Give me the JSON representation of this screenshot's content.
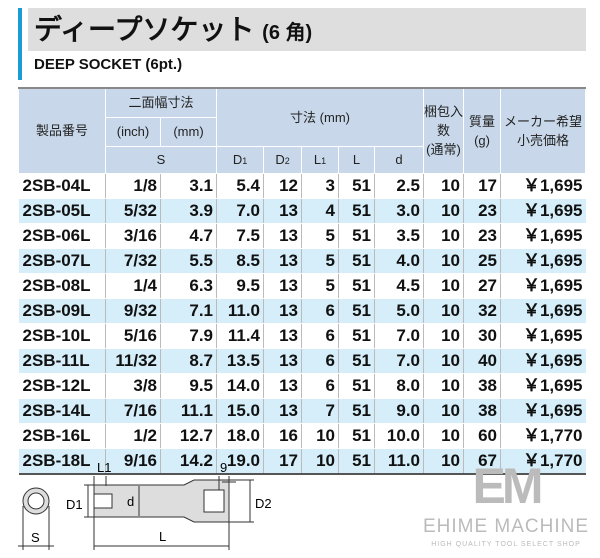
{
  "title": "ディープソケット",
  "title_suffix": "(6 角)",
  "subtitle": "DEEP SOCKET (6pt.)",
  "headers": {
    "part_no": "製品番号",
    "width_across": "二面幅寸法",
    "inch": "(inch)",
    "mm": "(mm)",
    "s": "S",
    "dims": "寸法 (mm)",
    "d1": "D",
    "d2": "D",
    "l1": "L",
    "l": "L",
    "d": "d",
    "sub1": "1",
    "sub2": "2",
    "pack": "梱包入数",
    "pack2": "(通常)",
    "weight": "質量",
    "weight_unit": "(g)",
    "price": "メーカー希望",
    "price2": "小売価格"
  },
  "rows": [
    [
      "2SB-04L",
      "1/8",
      "3.1",
      "5.4",
      "12",
      "3",
      "51",
      "2.5",
      "10",
      "17",
      "￥1,695"
    ],
    [
      "2SB-05L",
      "5/32",
      "3.9",
      "7.0",
      "13",
      "4",
      "51",
      "3.0",
      "10",
      "23",
      "￥1,695"
    ],
    [
      "2SB-06L",
      "3/16",
      "4.7",
      "7.5",
      "13",
      "5",
      "51",
      "3.5",
      "10",
      "23",
      "￥1,695"
    ],
    [
      "2SB-07L",
      "7/32",
      "5.5",
      "8.5",
      "13",
      "5",
      "51",
      "4.0",
      "10",
      "25",
      "￥1,695"
    ],
    [
      "2SB-08L",
      "1/4",
      "6.3",
      "9.5",
      "13",
      "5",
      "51",
      "4.5",
      "10",
      "27",
      "￥1,695"
    ],
    [
      "2SB-09L",
      "9/32",
      "7.1",
      "11.0",
      "13",
      "6",
      "51",
      "5.0",
      "10",
      "32",
      "￥1,695"
    ],
    [
      "2SB-10L",
      "5/16",
      "7.9",
      "11.4",
      "13",
      "6",
      "51",
      "7.0",
      "10",
      "30",
      "￥1,695"
    ],
    [
      "2SB-11L",
      "11/32",
      "8.7",
      "13.5",
      "13",
      "6",
      "51",
      "7.0",
      "10",
      "40",
      "￥1,695"
    ],
    [
      "2SB-12L",
      "3/8",
      "9.5",
      "14.0",
      "13",
      "6",
      "51",
      "8.0",
      "10",
      "38",
      "￥1,695"
    ],
    [
      "2SB-14L",
      "7/16",
      "11.1",
      "15.0",
      "13",
      "7",
      "51",
      "9.0",
      "10",
      "38",
      "￥1,695"
    ],
    [
      "2SB-16L",
      "1/2",
      "12.7",
      "18.0",
      "16",
      "10",
      "51",
      "10.0",
      "10",
      "60",
      "￥1,770"
    ],
    [
      "2SB-18L",
      "9/16",
      "14.2",
      "19.0",
      "17",
      "10",
      "51",
      "11.0",
      "10",
      "67",
      "￥1,770"
    ]
  ],
  "diagram": {
    "l1": "L1",
    "nine": "9",
    "d1": "D1",
    "d": "d",
    "d2": "D2",
    "l": "L",
    "s": "S"
  },
  "logo": {
    "mark": "EM",
    "name": "EHIME MACHINE",
    "tagline": "HIGH QUALITY TOOL SELECT SHOP"
  },
  "colors": {
    "accent": "#1a9ad6",
    "header": "#c8d8ea",
    "stripe": "#d5eef9"
  }
}
